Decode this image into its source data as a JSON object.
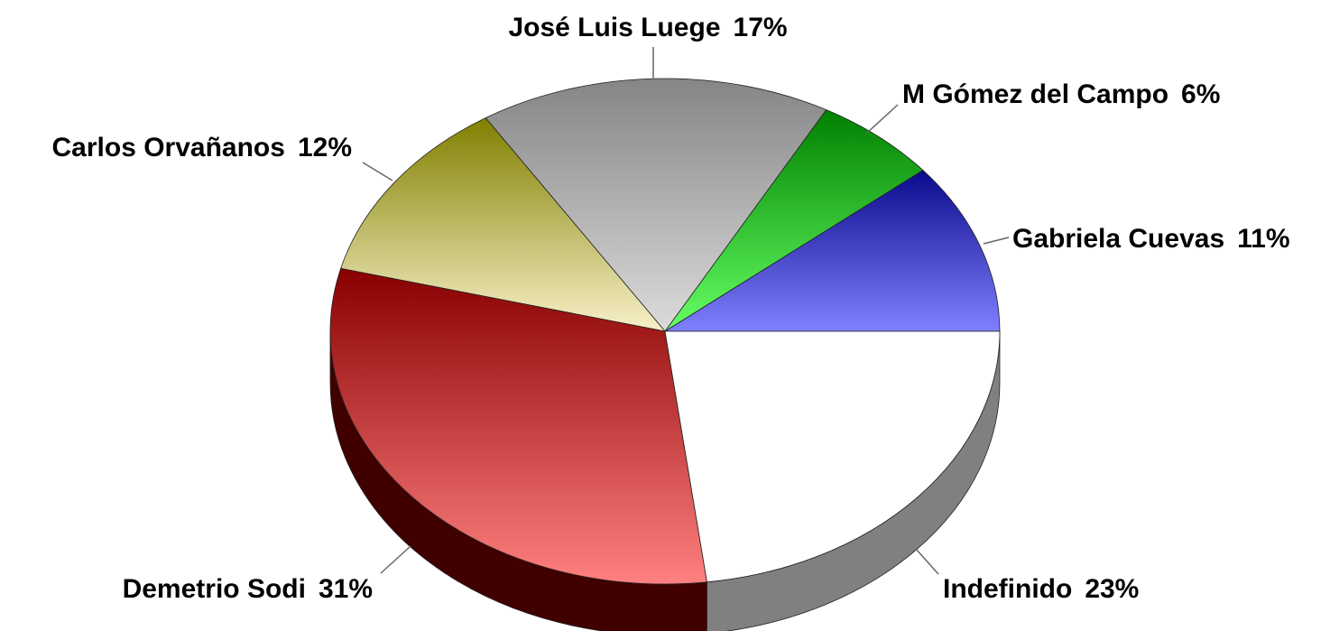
{
  "chart_data": {
    "type": "pie",
    "categories": [
      "Gabriela Cuevas",
      "M Gómez del Campo",
      "José Luis Luege",
      "Carlos Orvañanos",
      "Demetrio Sodi",
      "Indefinido"
    ],
    "values": [
      11,
      6,
      17,
      12,
      31,
      23
    ],
    "value_labels": [
      "11%",
      "6%",
      "17%",
      "12%",
      "31%",
      "23%"
    ],
    "colors": [
      [
        "#0a0a8c",
        "#8080ff"
      ],
      [
        "#008000",
        "#66ff66"
      ],
      [
        "#858585",
        "#dcdcdc"
      ],
      [
        "#808000",
        "#f8f0c8"
      ],
      [
        "#880000",
        "#ff8080"
      ],
      [
        "#ffffff",
        "#ffffff"
      ]
    ],
    "side_colors": [
      "#000040",
      "#004000",
      "#404040",
      "#404000",
      "#400000",
      "#808080"
    ]
  }
}
